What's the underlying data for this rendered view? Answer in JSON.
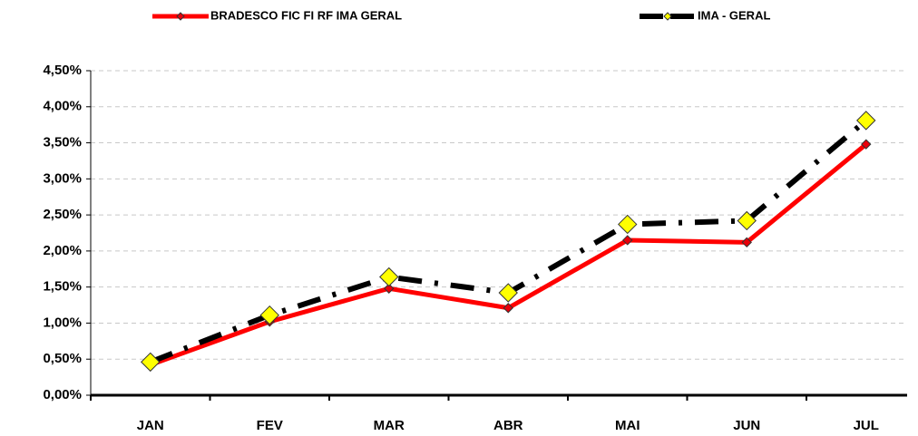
{
  "chart_data": {
    "type": "line",
    "categories": [
      "JAN",
      "FEV",
      "MAR",
      "ABR",
      "MAI",
      "JUN",
      "JUL"
    ],
    "series": [
      {
        "name": "BRADESCO FIC FI RF IMA GERAL",
        "color": "#ff0000",
        "marker_color": "#e8000a",
        "values": [
          0.42,
          1.02,
          1.48,
          1.21,
          2.15,
          2.12,
          3.48
        ]
      },
      {
        "name": "IMA - GERAL",
        "color": "#000000",
        "marker_color": "#ffff00",
        "values": [
          0.46,
          1.11,
          1.64,
          1.42,
          2.37,
          2.42,
          3.81
        ]
      }
    ],
    "ylim": [
      0,
      4.5
    ],
    "yticks": [
      {
        "value": 0,
        "label": "0,00%"
      },
      {
        "value": 0.5,
        "label": "0,50%"
      },
      {
        "value": 1,
        "label": "1,00%"
      },
      {
        "value": 1.5,
        "label": "1,50%"
      },
      {
        "value": 2,
        "label": "2,00%"
      },
      {
        "value": 2.5,
        "label": "2,50%"
      },
      {
        "value": 3,
        "label": "3,00%"
      },
      {
        "value": 3.5,
        "label": "3,50%"
      },
      {
        "value": 4,
        "label": "4,00%"
      },
      {
        "value": 4.5,
        "label": "4,50%"
      }
    ],
    "grid": true,
    "legend": "top"
  }
}
